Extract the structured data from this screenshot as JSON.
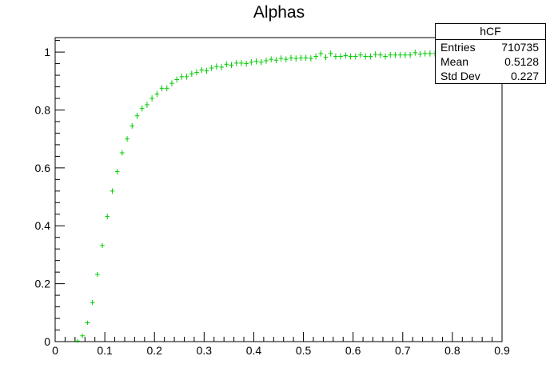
{
  "chart_data": {
    "type": "scatter",
    "title": "Alphas",
    "xlabel": "",
    "ylabel": "",
    "xlim": [
      0,
      0.9
    ],
    "ylim": [
      0,
      1.05
    ],
    "x_ticks": [
      "0",
      "0.1",
      "0.2",
      "0.3",
      "0.4",
      "0.5",
      "0.6",
      "0.7",
      "0.8",
      "0.9"
    ],
    "y_ticks": [
      "0",
      "0.2",
      "0.4",
      "0.6",
      "0.8",
      "1"
    ],
    "grid": false,
    "marker_color": "#00cc00",
    "bin_width": 0.009,
    "series": [
      {
        "x": [
          0.045,
          0.055,
          0.065,
          0.075,
          0.085,
          0.095,
          0.105,
          0.115,
          0.125,
          0.135,
          0.145,
          0.155,
          0.165,
          0.175,
          0.185,
          0.195,
          0.205,
          0.215,
          0.225,
          0.235,
          0.245,
          0.255,
          0.265,
          0.275,
          0.285,
          0.295,
          0.305,
          0.315,
          0.325,
          0.335,
          0.345,
          0.355,
          0.365,
          0.375,
          0.385,
          0.395,
          0.405,
          0.415,
          0.425,
          0.435,
          0.445,
          0.455,
          0.465,
          0.475,
          0.485,
          0.495,
          0.505,
          0.515,
          0.525,
          0.535,
          0.545,
          0.555,
          0.565,
          0.575,
          0.585,
          0.595,
          0.605,
          0.615,
          0.625,
          0.635,
          0.645,
          0.655,
          0.665,
          0.675,
          0.685,
          0.695,
          0.705,
          0.715,
          0.725,
          0.735,
          0.745,
          0.755,
          0.765,
          0.775,
          0.785,
          0.795,
          0.805
        ],
        "y": [
          0.002,
          0.02,
          0.065,
          0.135,
          0.232,
          0.332,
          0.432,
          0.52,
          0.587,
          0.652,
          0.7,
          0.745,
          0.78,
          0.805,
          0.818,
          0.84,
          0.855,
          0.875,
          0.875,
          0.892,
          0.905,
          0.915,
          0.915,
          0.925,
          0.93,
          0.938,
          0.935,
          0.945,
          0.95,
          0.948,
          0.958,
          0.955,
          0.962,
          0.962,
          0.96,
          0.965,
          0.968,
          0.965,
          0.97,
          0.975,
          0.972,
          0.978,
          0.975,
          0.98,
          0.978,
          0.98,
          0.98,
          0.978,
          0.985,
          0.995,
          0.982,
          0.995,
          0.985,
          0.985,
          0.988,
          0.985,
          0.985,
          0.99,
          0.985,
          0.985,
          0.992,
          0.99,
          0.985,
          0.99,
          0.99,
          0.99,
          0.99,
          0.99,
          0.998,
          0.993,
          0.995,
          0.995,
          0.995,
          0.998,
          0.998,
          0.998,
          1.0
        ],
        "yerr": [
          0.001,
          0.002,
          0.002,
          0.003,
          0.003,
          0.003,
          0.004,
          0.004,
          0.004,
          0.004,
          0.004,
          0.004,
          0.005,
          0.005,
          0.005,
          0.005,
          0.005,
          0.005,
          0.005,
          0.005,
          0.005,
          0.005,
          0.005,
          0.005,
          0.005,
          0.005,
          0.005,
          0.005,
          0.005,
          0.005,
          0.005,
          0.005,
          0.005,
          0.005,
          0.005,
          0.005,
          0.005,
          0.005,
          0.005,
          0.005,
          0.005,
          0.005,
          0.005,
          0.005,
          0.005,
          0.005,
          0.005,
          0.005,
          0.005,
          0.005,
          0.005,
          0.005,
          0.005,
          0.005,
          0.005,
          0.005,
          0.005,
          0.005,
          0.005,
          0.005,
          0.005,
          0.005,
          0.005,
          0.005,
          0.005,
          0.005,
          0.005,
          0.005,
          0.005,
          0.005,
          0.005,
          0.005,
          0.005,
          0.005,
          0.005,
          0.005,
          0.005
        ]
      }
    ],
    "stats_box": {
      "name": "hCF",
      "rows": [
        {
          "label": "Entries",
          "value": "710735"
        },
        {
          "label": "Mean",
          "value": "0.5128"
        },
        {
          "label": "Std Dev",
          "value": "0.227"
        }
      ]
    }
  }
}
